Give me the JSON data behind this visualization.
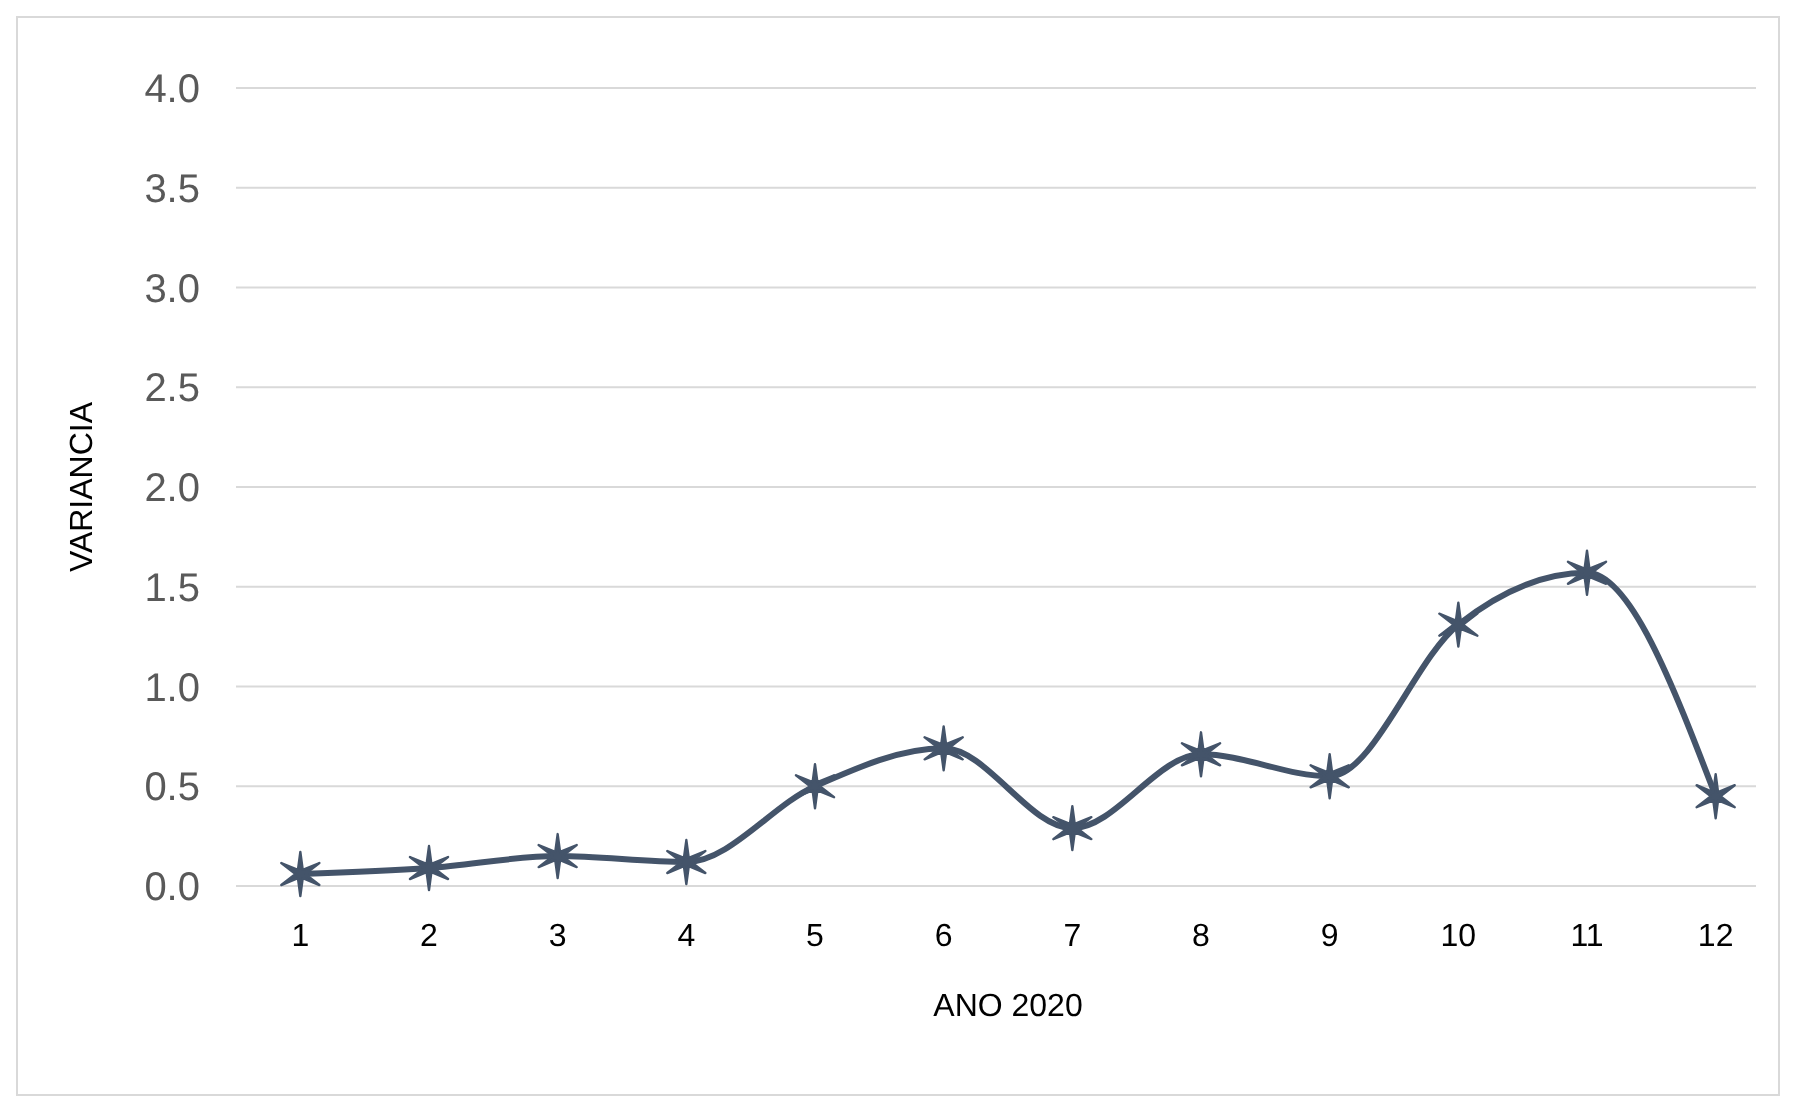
{
  "chart_data": {
    "type": "line",
    "xlabel": "ANO 2020",
    "ylabel": "VARIANCIA",
    "x": [
      1,
      2,
      3,
      4,
      5,
      6,
      7,
      8,
      9,
      10,
      11,
      12
    ],
    "xlim": [
      0.5,
      12.5
    ],
    "xticks": [
      1,
      2,
      3,
      4,
      5,
      6,
      7,
      8,
      9,
      10,
      11,
      12
    ],
    "series": [
      {
        "color": "#44546a",
        "values": [
          0.06,
          0.09,
          0.15,
          0.12,
          0.5,
          0.69,
          0.29,
          0.66,
          0.55,
          1.31,
          1.57,
          0.45
        ]
      }
    ],
    "ylim": [
      0,
      4
    ],
    "yticks": [
      {
        "value": 0,
        "label": "0.0"
      },
      {
        "value": 0.5,
        "label": "0.5"
      },
      {
        "value": 1,
        "label": "1.0"
      },
      {
        "value": 1.5,
        "label": "1.5"
      },
      {
        "value": 2,
        "label": "2.0"
      },
      {
        "value": 2.5,
        "label": "2.5"
      },
      {
        "value": 3,
        "label": "3.0"
      },
      {
        "value": 3.5,
        "label": "3.5"
      },
      {
        "value": 4,
        "label": "4.0"
      }
    ],
    "grid": "y",
    "marker": "cross",
    "line_style": "solid"
  }
}
